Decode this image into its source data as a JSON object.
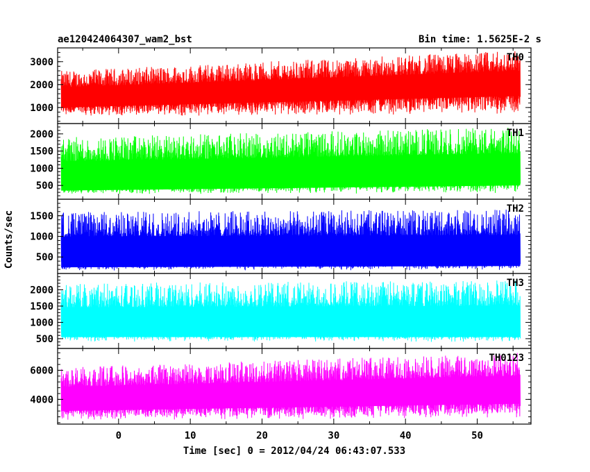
{
  "header": {
    "left": "ae120424064307_wam2_bst",
    "right": "Bin time: 1.5625E-2 s"
  },
  "chart_data": {
    "type": "line",
    "xlabel": "Time [sec] 0 = 2012/04/24 06:43:07.533",
    "ylabel": "Counts/sec",
    "xlim": [
      -8.5,
      57.5
    ],
    "x_range_data": [
      -8,
      56
    ],
    "xticks": [
      0,
      10,
      20,
      30,
      40,
      50
    ],
    "grid": false,
    "panels": [
      {
        "name": "TH0",
        "color": "#ff0000",
        "ylim": [
          300,
          3600
        ],
        "yticks": [
          1000,
          2000,
          3000
        ],
        "baseline_start": 1000,
        "baseline_end": 1500,
        "peak_start": 2600,
        "peak_end": 3500,
        "low": 500
      },
      {
        "name": "TH1",
        "color": "#00ff00",
        "ylim": [
          100,
          2300
        ],
        "yticks": [
          500,
          1000,
          1500,
          2000
        ],
        "baseline_start": 350,
        "baseline_end": 500,
        "peak_start": 1900,
        "peak_end": 2200,
        "low": 200
      },
      {
        "name": "TH2",
        "color": "#0000ff",
        "ylim": [
          100,
          1900
        ],
        "yticks": [
          500,
          1000,
          1500
        ],
        "baseline_start": 250,
        "baseline_end": 280,
        "peak_start": 1600,
        "peak_end": 1650,
        "low": 150
      },
      {
        "name": "TH3",
        "color": "#00ffff",
        "ylim": [
          200,
          2500
        ],
        "yticks": [
          500,
          1000,
          1500,
          2000
        ],
        "baseline_start": 550,
        "baseline_end": 550,
        "peak_start": 2200,
        "peak_end": 2300,
        "low": 350
      },
      {
        "name": "TH0123",
        "color": "#ff00ff",
        "ylim": [
          2300,
          7500
        ],
        "yticks": [
          4000,
          6000
        ],
        "baseline_start": 3200,
        "baseline_end": 3700,
        "peak_start": 6200,
        "peak_end": 7200,
        "low": 2400
      }
    ]
  }
}
